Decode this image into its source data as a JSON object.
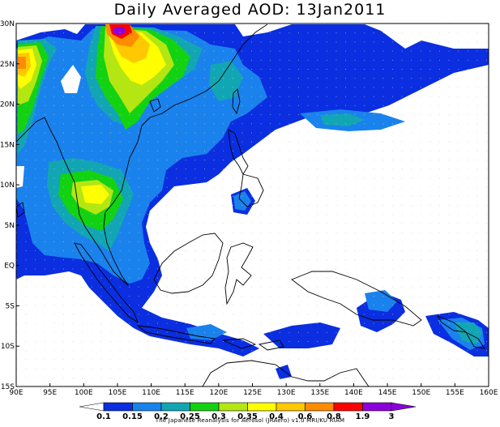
{
  "title": "Daily Averaged AOD: 13Jan2011",
  "credit": "The Japanese Reanalysis for Aerosol (JRAero) v1.0 MRI/KU RIAM",
  "map": {
    "lon_range": [
      90,
      160
    ],
    "lat_range": [
      -15,
      30
    ],
    "lon_labels": [
      "90E",
      "95E",
      "100E",
      "105E",
      "110E",
      "115E",
      "120E",
      "125E",
      "130E",
      "135E",
      "140E",
      "145E",
      "150E",
      "155E",
      "160E"
    ],
    "lat_labels": [
      "30N",
      "25N",
      "20N",
      "15N",
      "10N",
      "5N",
      "EQ",
      "5S",
      "10S",
      "15S"
    ],
    "grid": "dotted"
  },
  "colorbar": {
    "labels": [
      "0.1",
      "0.15",
      "0.2",
      "0.25",
      "0.3",
      "0.35",
      "0.4",
      "0.6",
      "0.8",
      "1.9",
      "3"
    ],
    "colors": [
      "#ffffff",
      "#0a2ee0",
      "#1a82ec",
      "#12a6b4",
      "#12d212",
      "#b4e612",
      "#ffff00",
      "#ffc800",
      "#ff8c00",
      "#ff0000",
      "#8c00dc"
    ]
  }
}
